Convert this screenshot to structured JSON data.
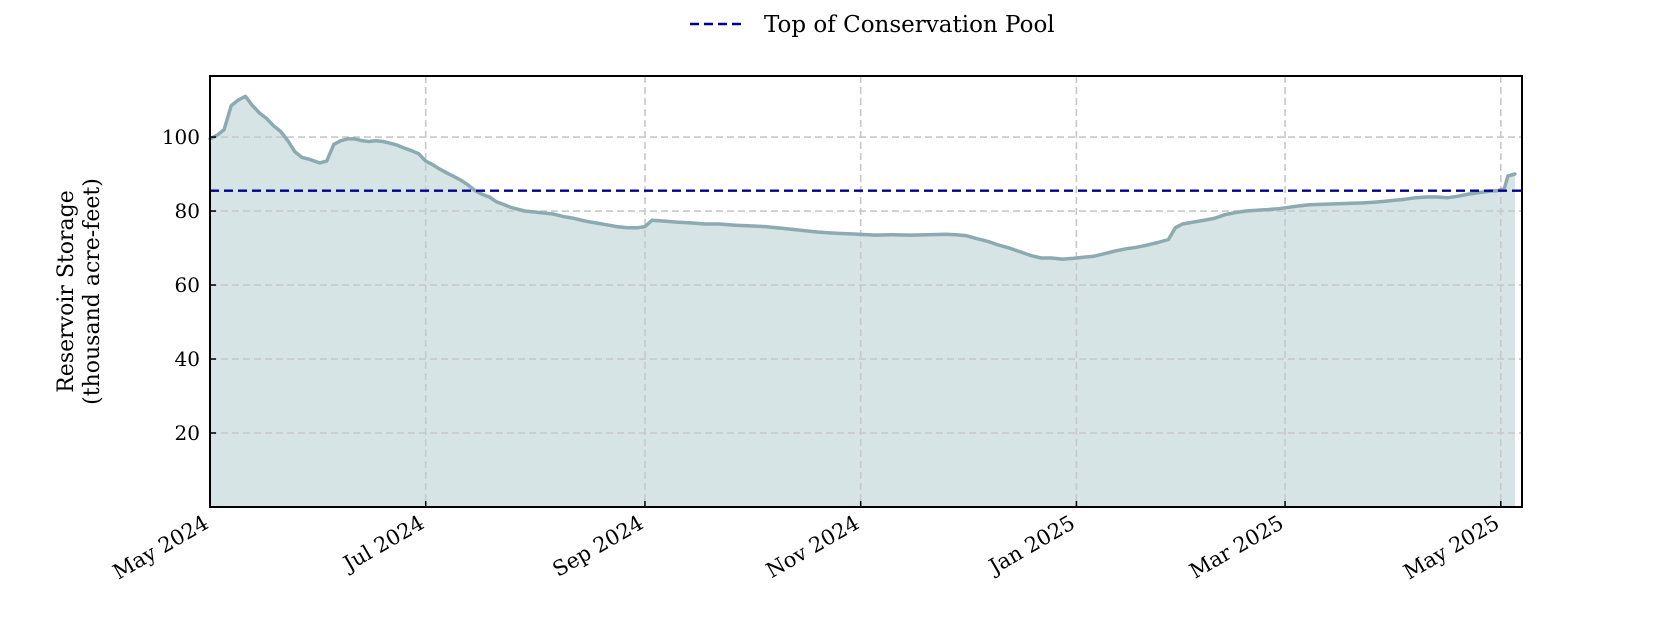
{
  "chart_data": {
    "type": "area",
    "title": "",
    "xlabel": "",
    "ylabel": [
      "Reservoir Storage",
      "(thousand acre-feet)"
    ],
    "x_ticks": [
      "May 2024",
      "Jul 2024",
      "Sep 2024",
      "Nov 2024",
      "Jan 2025",
      "Mar 2025",
      "May 2025"
    ],
    "y_ticks": [
      20,
      40,
      60,
      80,
      100
    ],
    "xlim": [
      "2024-05-01",
      "2025-05-07"
    ],
    "ylim": [
      0,
      116.5
    ],
    "grid": true,
    "legend_position": "top-center",
    "series": [
      {
        "name": "",
        "kind": "area",
        "color": "#8eaab1",
        "fill_color": "#d6e4e6",
        "points": [
          [
            "2024-05-01",
            99.5
          ],
          [
            "2024-05-03",
            100.5
          ],
          [
            "2024-05-05",
            102.0
          ],
          [
            "2024-05-07",
            108.5
          ],
          [
            "2024-05-09",
            110.0
          ],
          [
            "2024-05-11",
            111.0
          ],
          [
            "2024-05-13",
            108.5
          ],
          [
            "2024-05-15",
            106.5
          ],
          [
            "2024-05-17",
            105.0
          ],
          [
            "2024-05-19",
            103.0
          ],
          [
            "2024-05-21",
            101.5
          ],
          [
            "2024-05-23",
            99.0
          ],
          [
            "2024-05-25",
            96.0
          ],
          [
            "2024-05-27",
            94.5
          ],
          [
            "2024-05-29",
            94.0
          ],
          [
            "2024-06-01",
            93.0
          ],
          [
            "2024-06-03",
            93.5
          ],
          [
            "2024-06-05",
            98.0
          ],
          [
            "2024-06-07",
            99.0
          ],
          [
            "2024-06-09",
            99.5
          ],
          [
            "2024-06-11",
            99.5
          ],
          [
            "2024-06-13",
            99.0
          ],
          [
            "2024-06-15",
            98.8
          ],
          [
            "2024-06-17",
            99.0
          ],
          [
            "2024-06-19",
            98.8
          ],
          [
            "2024-06-21",
            98.3
          ],
          [
            "2024-06-23",
            97.8
          ],
          [
            "2024-06-25",
            97.0
          ],
          [
            "2024-06-27",
            96.3
          ],
          [
            "2024-06-29",
            95.5
          ],
          [
            "2024-07-01",
            93.5
          ],
          [
            "2024-07-03",
            92.5
          ],
          [
            "2024-07-05",
            91.3
          ],
          [
            "2024-07-07",
            90.3
          ],
          [
            "2024-07-09",
            89.3
          ],
          [
            "2024-07-11",
            88.3
          ],
          [
            "2024-07-13",
            87.0
          ],
          [
            "2024-07-15",
            85.5
          ],
          [
            "2024-07-17",
            84.5
          ],
          [
            "2024-07-19",
            83.8
          ],
          [
            "2024-07-21",
            82.5
          ],
          [
            "2024-07-23",
            81.8
          ],
          [
            "2024-07-25",
            81.0
          ],
          [
            "2024-07-27",
            80.5
          ],
          [
            "2024-07-29",
            80.0
          ],
          [
            "2024-07-31",
            79.8
          ],
          [
            "2024-08-03",
            79.5
          ],
          [
            "2024-08-06",
            79.2
          ],
          [
            "2024-08-09",
            78.5
          ],
          [
            "2024-08-12",
            78.0
          ],
          [
            "2024-08-15",
            77.3
          ],
          [
            "2024-08-18",
            76.8
          ],
          [
            "2024-08-21",
            76.3
          ],
          [
            "2024-08-24",
            75.8
          ],
          [
            "2024-08-27",
            75.5
          ],
          [
            "2024-08-30",
            75.5
          ],
          [
            "2024-09-01",
            75.8
          ],
          [
            "2024-09-03",
            77.5
          ],
          [
            "2024-09-06",
            77.3
          ],
          [
            "2024-09-10",
            77.0
          ],
          [
            "2024-09-14",
            76.8
          ],
          [
            "2024-09-18",
            76.5
          ],
          [
            "2024-09-22",
            76.5
          ],
          [
            "2024-09-26",
            76.2
          ],
          [
            "2024-09-30",
            76.0
          ],
          [
            "2024-10-05",
            75.8
          ],
          [
            "2024-10-10",
            75.3
          ],
          [
            "2024-10-15",
            74.8
          ],
          [
            "2024-10-20",
            74.3
          ],
          [
            "2024-10-25",
            74.0
          ],
          [
            "2024-10-30",
            73.8
          ],
          [
            "2024-11-05",
            73.5
          ],
          [
            "2024-11-10",
            73.6
          ],
          [
            "2024-11-15",
            73.5
          ],
          [
            "2024-11-20",
            73.6
          ],
          [
            "2024-11-25",
            73.7
          ],
          [
            "2024-11-28",
            73.6
          ],
          [
            "2024-12-01",
            73.3
          ],
          [
            "2024-12-04",
            72.5
          ],
          [
            "2024-12-07",
            71.8
          ],
          [
            "2024-12-10",
            70.8
          ],
          [
            "2024-12-13",
            70.0
          ],
          [
            "2024-12-16",
            69.0
          ],
          [
            "2024-12-19",
            68.0
          ],
          [
            "2024-12-22",
            67.3
          ],
          [
            "2024-12-25",
            67.3
          ],
          [
            "2024-12-28",
            67.0
          ],
          [
            "2024-12-31",
            67.2
          ],
          [
            "2025-01-03",
            67.5
          ],
          [
            "2025-01-06",
            67.8
          ],
          [
            "2025-01-09",
            68.5
          ],
          [
            "2025-01-12",
            69.2
          ],
          [
            "2025-01-15",
            69.8
          ],
          [
            "2025-01-18",
            70.2
          ],
          [
            "2025-01-21",
            70.8
          ],
          [
            "2025-01-24",
            71.5
          ],
          [
            "2025-01-27",
            72.3
          ],
          [
            "2025-01-29",
            75.5
          ],
          [
            "2025-01-31",
            76.5
          ],
          [
            "2025-02-03",
            77.0
          ],
          [
            "2025-02-06",
            77.5
          ],
          [
            "2025-02-09",
            78.0
          ],
          [
            "2025-02-12",
            79.0
          ],
          [
            "2025-02-15",
            79.6
          ],
          [
            "2025-02-18",
            80.0
          ],
          [
            "2025-02-21",
            80.2
          ],
          [
            "2025-02-24",
            80.4
          ],
          [
            "2025-02-27",
            80.6
          ],
          [
            "2025-03-02",
            81.0
          ],
          [
            "2025-03-05",
            81.4
          ],
          [
            "2025-03-08",
            81.7
          ],
          [
            "2025-03-11",
            81.8
          ],
          [
            "2025-03-14",
            81.9
          ],
          [
            "2025-03-17",
            82.0
          ],
          [
            "2025-03-20",
            82.1
          ],
          [
            "2025-03-23",
            82.2
          ],
          [
            "2025-03-26",
            82.4
          ],
          [
            "2025-03-29",
            82.6
          ],
          [
            "2025-04-01",
            82.9
          ],
          [
            "2025-04-04",
            83.2
          ],
          [
            "2025-04-07",
            83.6
          ],
          [
            "2025-04-10",
            83.8
          ],
          [
            "2025-04-13",
            83.8
          ],
          [
            "2025-04-16",
            83.6
          ],
          [
            "2025-04-19",
            84.0
          ],
          [
            "2025-04-22",
            84.6
          ],
          [
            "2025-04-25",
            85.0
          ],
          [
            "2025-04-28",
            85.4
          ],
          [
            "2025-04-30",
            85.5
          ],
          [
            "2025-05-02",
            86.0
          ],
          [
            "2025-05-03",
            89.5
          ],
          [
            "2025-05-05",
            90.0
          ]
        ]
      },
      {
        "name": "Top of Conservation Pool",
        "kind": "reference_line",
        "color": "#00008b",
        "style": "dashed",
        "value": 85.5
      }
    ]
  }
}
